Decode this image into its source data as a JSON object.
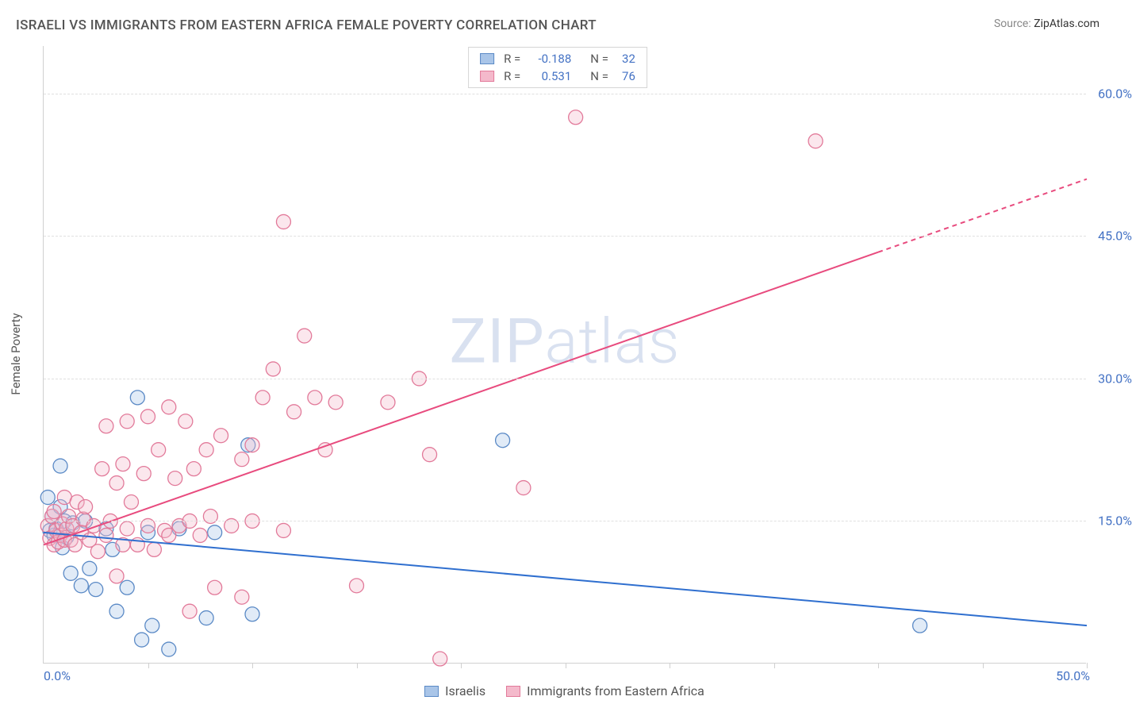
{
  "title": "ISRAELI VS IMMIGRANTS FROM EASTERN AFRICA FEMALE POVERTY CORRELATION CHART",
  "source_label": "Source:",
  "source_value": "ZipAtlas.com",
  "ylabel": "Female Poverty",
  "watermark": {
    "bold": "ZIP",
    "thin": "atlas"
  },
  "chart": {
    "type": "scatter",
    "xlim": [
      0,
      50
    ],
    "ylim": [
      0,
      65
    ],
    "xtick_labels": [
      "0.0%",
      "50.0%"
    ],
    "ytick_positions": [
      15,
      30,
      45,
      60
    ],
    "ytick_labels": [
      "15.0%",
      "30.0%",
      "45.0%",
      "60.0%"
    ],
    "xtick_minor_step": 5,
    "grid_color": "#e0e0e0",
    "axis_color": "#d0d0d0",
    "background_color": "#ffffff",
    "marker_radius": 9,
    "marker_stroke_width": 1.3,
    "marker_fill_opacity": 0.35,
    "line_width": 2,
    "series": [
      {
        "name": "Israelis",
        "color_stroke": "#5b8ac6",
        "color_fill": "#a9c5e8",
        "line_color": "#2f6fcf",
        "R": "-0.188",
        "N": "32",
        "points": [
          [
            0.2,
            17.5
          ],
          [
            0.3,
            14.0
          ],
          [
            0.4,
            15.5
          ],
          [
            0.5,
            13.5
          ],
          [
            0.6,
            14.2
          ],
          [
            0.8,
            16.5
          ],
          [
            0.8,
            20.8
          ],
          [
            0.9,
            12.2
          ],
          [
            1.0,
            15.0
          ],
          [
            1.1,
            13.3
          ],
          [
            1.3,
            9.5
          ],
          [
            1.4,
            14.8
          ],
          [
            1.8,
            8.2
          ],
          [
            2.0,
            15.0
          ],
          [
            2.2,
            10.0
          ],
          [
            2.5,
            7.8
          ],
          [
            3.0,
            14.2
          ],
          [
            3.3,
            12.0
          ],
          [
            3.5,
            5.5
          ],
          [
            4.0,
            8.0
          ],
          [
            4.5,
            28.0
          ],
          [
            4.7,
            2.5
          ],
          [
            5.0,
            13.8
          ],
          [
            5.2,
            4.0
          ],
          [
            6.0,
            1.5
          ],
          [
            6.5,
            14.2
          ],
          [
            7.8,
            4.8
          ],
          [
            8.2,
            13.8
          ],
          [
            9.8,
            23.0
          ],
          [
            10.0,
            5.2
          ],
          [
            22.0,
            23.5
          ],
          [
            42.0,
            4.0
          ]
        ],
        "trend": {
          "x1": 0,
          "y1": 13.8,
          "x2": 50,
          "y2": 4.0,
          "dash_from_x": null
        }
      },
      {
        "name": "Immigrants from Eastern Africa",
        "color_stroke": "#e27a9a",
        "color_fill": "#f4b9cb",
        "line_color": "#e84b7e",
        "R": "0.531",
        "N": "76",
        "points": [
          [
            0.2,
            14.5
          ],
          [
            0.3,
            13.2
          ],
          [
            0.4,
            15.5
          ],
          [
            0.5,
            12.5
          ],
          [
            0.5,
            16.0
          ],
          [
            0.6,
            14.0
          ],
          [
            0.7,
            12.8
          ],
          [
            0.8,
            13.5
          ],
          [
            0.9,
            14.7
          ],
          [
            1.0,
            17.5
          ],
          [
            1.0,
            13.0
          ],
          [
            1.1,
            14.2
          ],
          [
            1.2,
            15.5
          ],
          [
            1.3,
            13.0
          ],
          [
            1.4,
            14.5
          ],
          [
            1.5,
            12.5
          ],
          [
            1.6,
            17.0
          ],
          [
            1.8,
            13.8
          ],
          [
            1.9,
            15.2
          ],
          [
            2.0,
            16.5
          ],
          [
            2.2,
            13.0
          ],
          [
            2.4,
            14.5
          ],
          [
            2.6,
            11.8
          ],
          [
            2.8,
            20.5
          ],
          [
            3.0,
            13.5
          ],
          [
            3.0,
            25.0
          ],
          [
            3.2,
            15.0
          ],
          [
            3.5,
            19.0
          ],
          [
            3.5,
            9.2
          ],
          [
            3.8,
            12.5
          ],
          [
            3.8,
            21.0
          ],
          [
            4.0,
            14.2
          ],
          [
            4.0,
            25.5
          ],
          [
            4.2,
            17.0
          ],
          [
            4.5,
            12.5
          ],
          [
            4.8,
            20.0
          ],
          [
            5.0,
            14.5
          ],
          [
            5.0,
            26.0
          ],
          [
            5.3,
            12.0
          ],
          [
            5.5,
            22.5
          ],
          [
            5.8,
            14.0
          ],
          [
            6.0,
            27.0
          ],
          [
            6.0,
            13.5
          ],
          [
            6.3,
            19.5
          ],
          [
            6.5,
            14.5
          ],
          [
            6.8,
            25.5
          ],
          [
            7.0,
            15.0
          ],
          [
            7.0,
            5.5
          ],
          [
            7.2,
            20.5
          ],
          [
            7.5,
            13.5
          ],
          [
            7.8,
            22.5
          ],
          [
            8.0,
            15.5
          ],
          [
            8.2,
            8.0
          ],
          [
            8.5,
            24.0
          ],
          [
            9.0,
            14.5
          ],
          [
            9.5,
            21.5
          ],
          [
            9.5,
            7.0
          ],
          [
            10.0,
            23.0
          ],
          [
            10.0,
            15.0
          ],
          [
            10.5,
            28.0
          ],
          [
            11.0,
            31.0
          ],
          [
            11.5,
            14.0
          ],
          [
            11.5,
            46.5
          ],
          [
            12.0,
            26.5
          ],
          [
            12.5,
            34.5
          ],
          [
            13.0,
            28.0
          ],
          [
            13.5,
            22.5
          ],
          [
            14.0,
            27.5
          ],
          [
            15.0,
            8.2
          ],
          [
            16.5,
            27.5
          ],
          [
            18.0,
            30.0
          ],
          [
            19.0,
            0.5
          ],
          [
            23.0,
            18.5
          ],
          [
            25.5,
            57.5
          ],
          [
            37.0,
            55.0
          ],
          [
            18.5,
            22.0
          ]
        ],
        "trend": {
          "x1": 0,
          "y1": 12.5,
          "x2": 50,
          "y2": 51.0,
          "dash_from_x": 40
        }
      }
    ]
  },
  "bottom_legend": [
    {
      "label": "Israelis",
      "series": 0
    },
    {
      "label": "Immigrants from Eastern Africa",
      "series": 1
    }
  ]
}
